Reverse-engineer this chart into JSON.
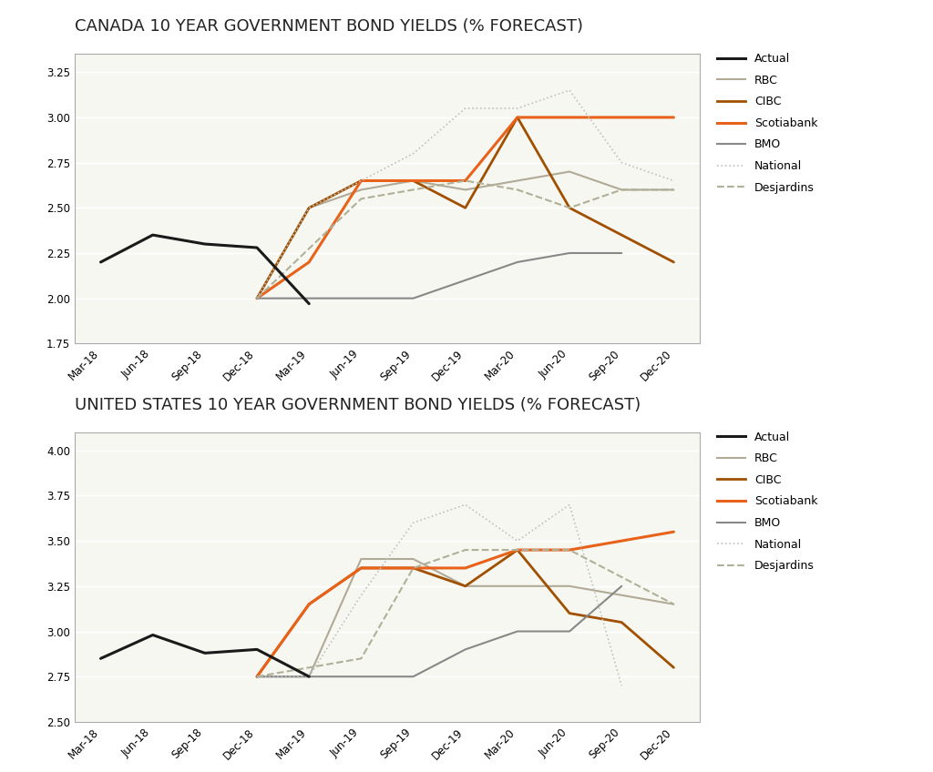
{
  "title_canada": "CANADA 10 YEAR GOVERNMENT BOND YIELDS (% FORECAST)",
  "title_us": "UNITED STATES 10 YEAR GOVERNMENT BOND YIELDS (% FORECAST)",
  "x_labels": [
    "Mar-18",
    "Jun-18",
    "Sep-18",
    "Dec-18",
    "Mar-19",
    "Jun-19",
    "Sep-19",
    "Dec-19",
    "Mar-20",
    "Jun-20",
    "Sep-20",
    "Dec-20"
  ],
  "canada": {
    "actual": [
      2.2,
      2.35,
      2.3,
      2.28,
      1.97,
      null,
      null,
      null,
      null,
      null,
      null,
      null
    ],
    "rbc": [
      null,
      null,
      null,
      2.0,
      2.5,
      2.6,
      2.65,
      2.6,
      2.65,
      2.7,
      2.6,
      2.6
    ],
    "cibc": [
      null,
      null,
      null,
      2.0,
      2.5,
      2.65,
      2.65,
      2.5,
      3.0,
      2.5,
      2.35,
      2.2
    ],
    "scotiabank": [
      null,
      null,
      null,
      2.0,
      2.2,
      2.65,
      2.65,
      2.65,
      3.0,
      3.0,
      3.0,
      3.0
    ],
    "bmo": [
      null,
      null,
      null,
      2.0,
      2.0,
      2.0,
      2.0,
      2.1,
      2.2,
      2.25,
      2.25,
      null
    ],
    "national": [
      null,
      null,
      null,
      2.0,
      2.5,
      2.65,
      2.8,
      3.05,
      3.05,
      3.15,
      2.75,
      2.65
    ],
    "desjardins": [
      null,
      null,
      null,
      2.0,
      null,
      2.55,
      2.6,
      2.65,
      2.6,
      2.5,
      2.6,
      2.6
    ]
  },
  "us": {
    "actual": [
      2.85,
      2.98,
      2.88,
      2.9,
      2.75,
      null,
      null,
      null,
      null,
      null,
      null,
      null
    ],
    "rbc": [
      null,
      null,
      null,
      2.75,
      2.75,
      3.4,
      3.4,
      3.25,
      3.25,
      3.25,
      3.2,
      3.15
    ],
    "cibc": [
      null,
      null,
      null,
      2.75,
      3.15,
      3.35,
      3.35,
      3.25,
      3.45,
      3.1,
      3.05,
      2.8
    ],
    "scotiabank": [
      null,
      null,
      null,
      2.75,
      3.15,
      3.35,
      3.35,
      3.35,
      3.45,
      3.45,
      3.5,
      3.55
    ],
    "bmo": [
      null,
      null,
      null,
      2.75,
      2.75,
      2.75,
      2.75,
      2.9,
      3.0,
      3.0,
      3.25,
      null
    ],
    "national": [
      null,
      null,
      null,
      2.75,
      2.75,
      3.2,
      3.6,
      3.7,
      3.5,
      3.7,
      2.7,
      null
    ],
    "desjardins": [
      null,
      null,
      null,
      2.75,
      null,
      2.85,
      3.35,
      3.45,
      3.45,
      3.45,
      null,
      3.15
    ]
  },
  "colors": {
    "actual": "#1a1a1a",
    "rbc": "#b0aa96",
    "cibc": "#a05000",
    "scotiabank": "#e8621a",
    "bmo": "#888888",
    "national": "#c0c0c0",
    "desjardins": "#b0b098"
  },
  "canada_ylim": [
    1.75,
    3.35
  ],
  "canada_yticks": [
    1.75,
    2.0,
    2.25,
    2.5,
    2.75,
    3.0,
    3.25
  ],
  "us_ylim": [
    2.5,
    4.1
  ],
  "us_yticks": [
    2.5,
    2.75,
    3.0,
    3.25,
    3.5,
    3.75,
    4.0
  ],
  "plot_bg_color": "#f7f7f2",
  "fig_bg_color": "#ffffff",
  "title_fontsize": 13,
  "label_fontsize": 8.5,
  "legend_fontsize": 9,
  "series_keys": [
    "actual",
    "rbc",
    "cibc",
    "scotiabank",
    "bmo",
    "national",
    "desjardins"
  ],
  "legend_labels": [
    "Actual",
    "RBC",
    "CIBC",
    "Scotiabank",
    "BMO",
    "National",
    "Desjardins"
  ],
  "linestyles": {
    "actual": "-",
    "rbc": "-",
    "cibc": "-",
    "scotiabank": "-",
    "bmo": "-",
    "national": ":",
    "desjardins": "--"
  },
  "linewidths": {
    "actual": 2.2,
    "rbc": 1.5,
    "cibc": 2.0,
    "scotiabank": 2.2,
    "bmo": 1.5,
    "national": 1.2,
    "desjardins": 1.5
  }
}
